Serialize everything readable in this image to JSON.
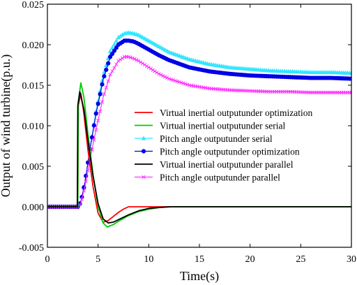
{
  "chart_data": {
    "type": "line",
    "xlabel": "Time(s)",
    "ylabel": "Output of wind turbine(p.u.)",
    "xlim": [
      0,
      30
    ],
    "ylim": [
      -0.005,
      0.025
    ],
    "xticks": [
      0,
      5,
      10,
      15,
      20,
      25,
      30
    ],
    "yticks": [
      -0.005,
      0.0,
      0.005,
      0.01,
      0.015,
      0.02,
      0.025
    ],
    "xtick_labels": [
      "0",
      "5",
      "10",
      "15",
      "20",
      "25",
      "30"
    ],
    "ytick_labels": [
      "-0.005",
      "0.000",
      "0.005",
      "0.010",
      "0.015",
      "0.020",
      "0.025"
    ],
    "grid": false,
    "legend_position": "center-right",
    "series": [
      {
        "name": "Virtual inertial outputunder optimization",
        "color": "#ff0000",
        "marker": "none",
        "x": [
          0,
          3.0,
          3.05,
          3.3,
          3.6,
          4.0,
          4.5,
          5.0,
          5.5,
          6.0,
          6.5,
          7.0,
          7.5,
          8.0,
          8.5,
          30
        ],
        "y": [
          0,
          0,
          0.0125,
          0.014,
          0.0115,
          0.007,
          0.0025,
          -0.0008,
          -0.0019,
          -0.0017,
          -0.0012,
          -0.0007,
          -0.0003,
          0.0,
          0.0,
          0.0
        ]
      },
      {
        "name": "Virtual inertial outputunder serial",
        "color": "#00cc00",
        "marker": "none",
        "x": [
          0,
          3.0,
          3.05,
          3.3,
          3.6,
          4.0,
          4.5,
          5.0,
          5.5,
          5.9,
          6.5,
          7.0,
          8.0,
          9.0,
          10.0,
          11.0,
          12.5,
          15.0,
          30
        ],
        "y": [
          0,
          0,
          0.013,
          0.0153,
          0.0135,
          0.009,
          0.004,
          0.0,
          -0.002,
          -0.0025,
          -0.0022,
          -0.0018,
          -0.0011,
          -0.0006,
          -0.0003,
          -0.0001,
          0.0,
          0.0,
          0.0
        ]
      },
      {
        "name": "Pitch angle outputunder serial",
        "color": "#33e6ff",
        "marker": "triangle",
        "x": [
          0,
          3.0,
          3.3,
          3.7,
          4.2,
          4.8,
          5.5,
          6.2,
          7.0,
          7.6,
          8.0,
          8.5,
          9.0,
          10.0,
          11.0,
          12.0,
          14.0,
          16.0,
          18.0,
          20.0,
          22.0,
          24.0,
          26.0,
          28.0,
          30.0
        ],
        "y": [
          0,
          0,
          0.0006,
          0.003,
          0.0072,
          0.0118,
          0.0162,
          0.0192,
          0.0209,
          0.0214,
          0.0215,
          0.0214,
          0.0212,
          0.0205,
          0.0198,
          0.0191,
          0.0182,
          0.0176,
          0.0172,
          0.017,
          0.0168,
          0.0167,
          0.0166,
          0.0166,
          0.0165
        ]
      },
      {
        "name": "Pitch angle outputunder optimization",
        "color": "#0000e6",
        "marker": "circle",
        "x": [
          0,
          3.0,
          3.3,
          3.7,
          4.2,
          4.8,
          5.5,
          6.2,
          7.0,
          7.6,
          8.0,
          8.5,
          9.0,
          10.0,
          11.0,
          12.0,
          14.0,
          16.0,
          18.0,
          20.0,
          22.0,
          24.0,
          26.0,
          28.0,
          30.0
        ],
        "y": [
          0,
          0,
          0.0006,
          0.003,
          0.0071,
          0.0115,
          0.0157,
          0.0185,
          0.02,
          0.0205,
          0.0205,
          0.0204,
          0.0201,
          0.0194,
          0.0187,
          0.0181,
          0.0172,
          0.0167,
          0.0164,
          0.0162,
          0.0161,
          0.016,
          0.0159,
          0.0159,
          0.0158
        ]
      },
      {
        "name": "Virtual inertial outputunder parallel",
        "color": "#000000",
        "marker": "none",
        "x": [
          0,
          2.95,
          3.0,
          3.2,
          3.6,
          4.0,
          4.5,
          5.0,
          5.5,
          6.0,
          6.5,
          7.0,
          8.0,
          9.0,
          10.0,
          11.0,
          12.0,
          14.0,
          30
        ],
        "y": [
          0,
          0,
          0.0125,
          0.0142,
          0.012,
          0.0082,
          0.0038,
          0.0004,
          -0.0015,
          -0.002,
          -0.0019,
          -0.0016,
          -0.001,
          -0.0005,
          -0.0002,
          -0.0001,
          0.0,
          0.0,
          0.0
        ]
      },
      {
        "name": "Pitch angle outputunder parallel",
        "color": "#ff33ff",
        "marker": "x",
        "x": [
          0,
          3.0,
          3.3,
          3.7,
          4.2,
          4.8,
          5.5,
          6.2,
          7.0,
          7.6,
          8.0,
          8.5,
          9.0,
          10.0,
          11.0,
          12.0,
          14.0,
          16.0,
          18.0,
          20.0,
          22.0,
          24.0,
          26.0,
          28.0,
          30.0
        ],
        "y": [
          0,
          0,
          0.0004,
          0.0025,
          0.0058,
          0.0095,
          0.0135,
          0.0163,
          0.018,
          0.0185,
          0.0185,
          0.0183,
          0.018,
          0.0172,
          0.0164,
          0.0158,
          0.015,
          0.0146,
          0.0144,
          0.0143,
          0.0142,
          0.0142,
          0.0141,
          0.0141,
          0.0141
        ]
      }
    ]
  }
}
